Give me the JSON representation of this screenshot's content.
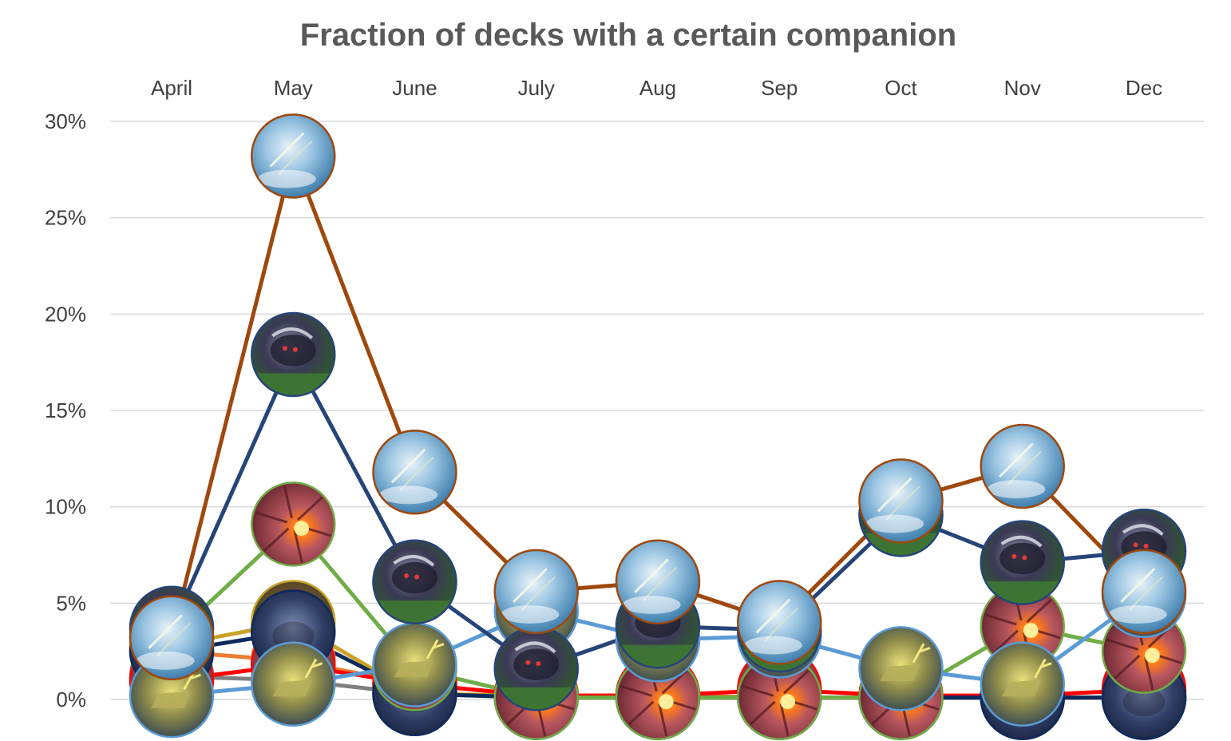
{
  "chart_data": {
    "type": "line",
    "title": "Fraction of decks with a certain companion",
    "categories": [
      "April",
      "May",
      "June",
      "July",
      "Aug",
      "Sep",
      "Oct",
      "Nov",
      "Dec"
    ],
    "y_ticks": [
      "0%",
      "5%",
      "10%",
      "15%",
      "20%",
      "25%",
      "30%"
    ],
    "ylim": [
      0,
      30
    ],
    "grid": true,
    "x_axis_position": "top",
    "series": [
      {
        "color": "#c9a227",
        "marker": "gold-ape-art",
        "values": [
          2.8,
          4.0,
          0.3,
          0.2,
          0.2,
          0.1,
          0.1,
          0.1,
          0.1
        ]
      },
      {
        "color": "#ed7d31",
        "marker": "orange-beast-art",
        "values": [
          2.5,
          2.0,
          0.8,
          0.2,
          0.2,
          0.1,
          0.1,
          0.1,
          0.1
        ]
      },
      {
        "color": "#7f7f7f",
        "marker": "gray-beast-art",
        "values": [
          1.2,
          1.0,
          0.3,
          0.1,
          0.1,
          0.1,
          0.1,
          0.1,
          0.1
        ]
      },
      {
        "color": "#ff0000",
        "marker": "red-creature-art",
        "values": [
          1.0,
          1.8,
          0.8,
          0.2,
          0.2,
          0.5,
          0.2,
          0.2,
          0.5
        ]
      },
      {
        "color": "#0d2a5c",
        "marker": "navy-creature-art",
        "values": [
          2.5,
          3.5,
          0.3,
          0.1,
          0.1,
          0.1,
          0.1,
          0.1,
          0.1
        ]
      },
      {
        "color": "#70ad47",
        "marker": "spider-fire-art",
        "values": [
          3.2,
          9.1,
          1.6,
          0.1,
          0.1,
          0.1,
          0.1,
          3.8,
          2.5
        ]
      },
      {
        "color": "#5b9bd5",
        "marker": "elk-deer-art",
        "values": [
          0.2,
          0.8,
          1.8,
          4.6,
          3.1,
          3.3,
          1.6,
          0.8,
          5.4
        ]
      },
      {
        "color": "#264478",
        "marker": "dark-panther-art",
        "values": [
          3.7,
          17.9,
          6.1,
          1.6,
          3.8,
          3.6,
          9.6,
          7.1,
          7.7
        ]
      },
      {
        "color": "#9e480e",
        "marker": "sky-serpent-art",
        "values": [
          3.2,
          28.2,
          11.8,
          5.6,
          6.1,
          4.0,
          10.3,
          12.1,
          5.6
        ]
      }
    ]
  }
}
